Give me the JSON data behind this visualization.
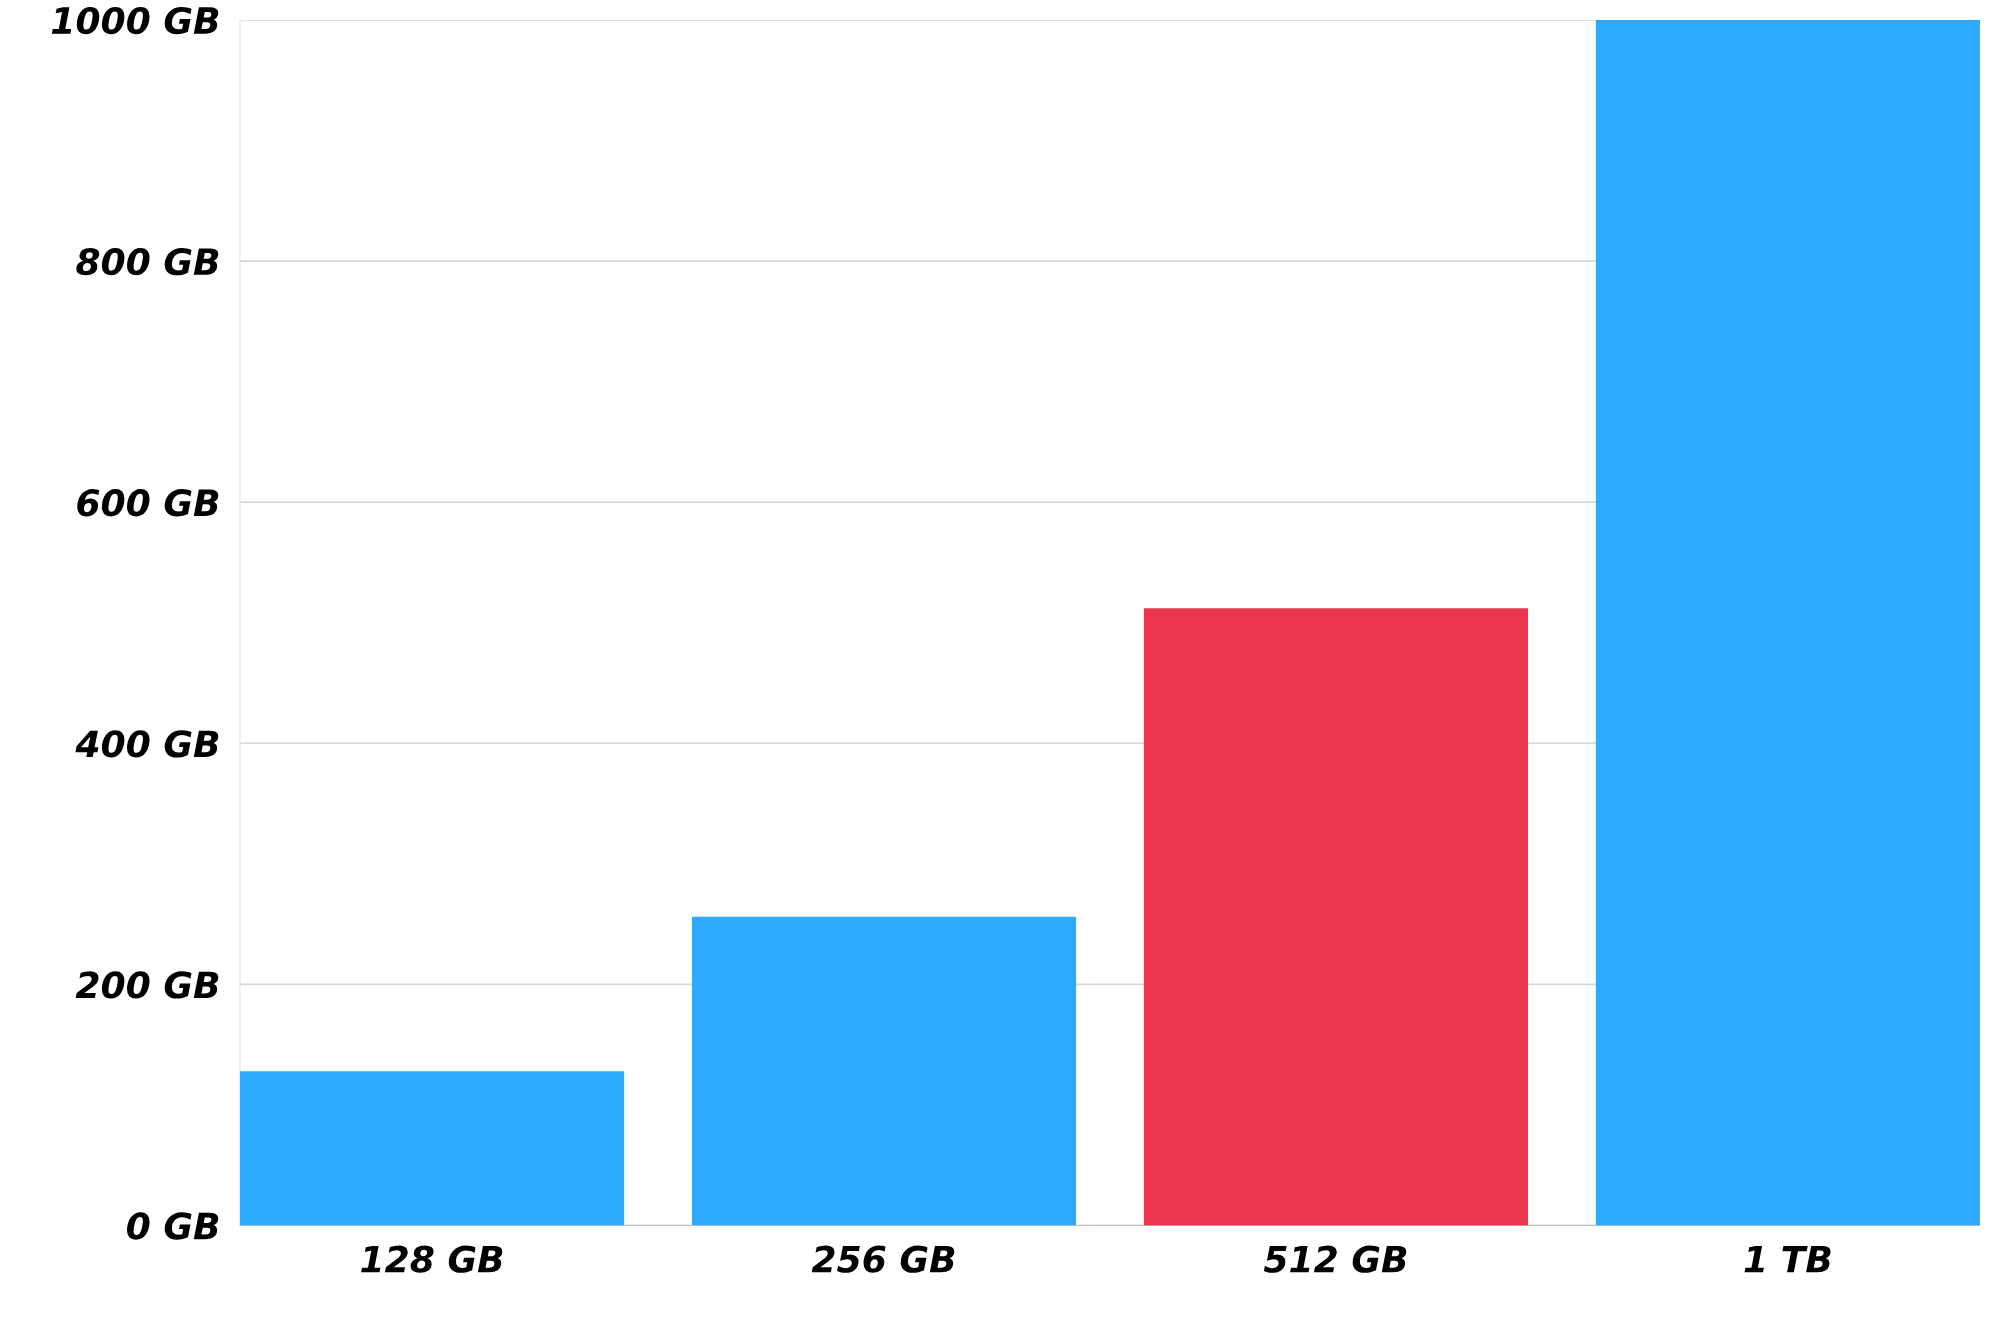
{
  "chart_data": {
    "type": "bar",
    "categories": [
      "128 GB",
      "256 GB",
      "512 GB",
      "1 TB"
    ],
    "values": [
      128,
      256,
      512,
      1000
    ],
    "colors": [
      "#2eabfe",
      "#2eabfe",
      "#eb364d",
      "#2eabfe"
    ],
    "ylim": [
      0,
      1000
    ],
    "yticks": [
      {
        "value": 0,
        "label": "0 GB"
      },
      {
        "value": 200,
        "label": "200 GB"
      },
      {
        "value": 400,
        "label": "400 GB"
      },
      {
        "value": 600,
        "label": "600 GB"
      },
      {
        "value": 800,
        "label": "800 GB"
      },
      {
        "value": 1000,
        "label": "1000 GB"
      }
    ],
    "grid": "y"
  }
}
